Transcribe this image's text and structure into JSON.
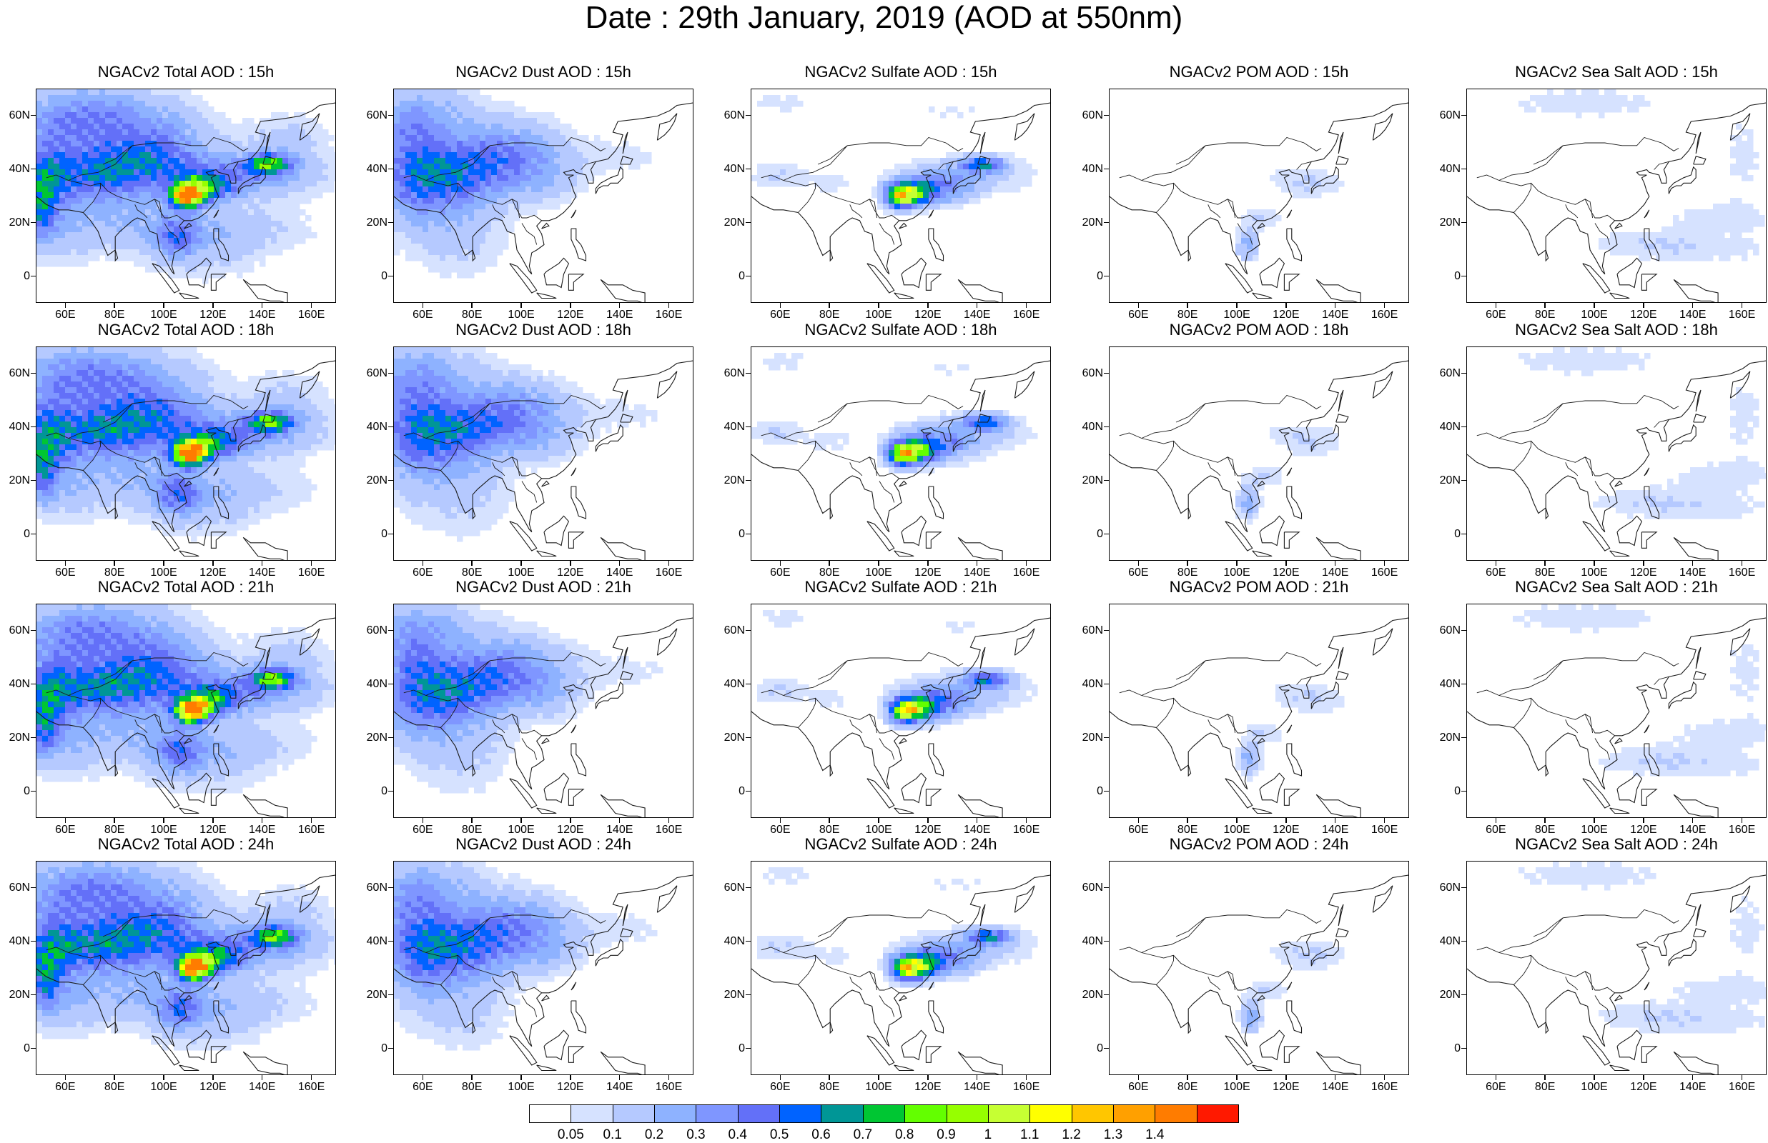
{
  "title": "Date : 29th January, 2019 (AOD at 550nm)",
  "axes": {
    "lat_labels": [
      "60N",
      "40N",
      "20N",
      "0"
    ],
    "lat_values": [
      60,
      40,
      20,
      0
    ],
    "lon_labels": [
      "60E",
      "80E",
      "100E",
      "120E",
      "140E",
      "160E"
    ],
    "lon_values": [
      60,
      80,
      100,
      120,
      140,
      160
    ],
    "lon_range": [
      48,
      170
    ],
    "lat_range": [
      -10,
      70
    ]
  },
  "panels": [
    {
      "title": "NGACv2 Total AOD : 15h"
    },
    {
      "title": "NGACv2 Dust AOD : 15h"
    },
    {
      "title": "NGACv2 Sulfate AOD : 15h"
    },
    {
      "title": "NGACv2 POM AOD : 15h"
    },
    {
      "title": "NGACv2 Sea Salt AOD : 15h"
    },
    {
      "title": "NGACv2 Total AOD : 18h"
    },
    {
      "title": "NGACv2 Dust AOD : 18h"
    },
    {
      "title": "NGACv2 Sulfate AOD : 18h"
    },
    {
      "title": "NGACv2 POM AOD : 18h"
    },
    {
      "title": "NGACv2 Sea Salt AOD : 18h"
    },
    {
      "title": "NGACv2 Total AOD : 21h"
    },
    {
      "title": "NGACv2 Dust AOD : 21h"
    },
    {
      "title": "NGACv2 Sulfate AOD : 21h"
    },
    {
      "title": "NGACv2 POM AOD : 21h"
    },
    {
      "title": "NGACv2 Sea Salt AOD : 21h"
    },
    {
      "title": "NGACv2 Total AOD : 24h"
    },
    {
      "title": "NGACv2 Dust AOD : 24h"
    },
    {
      "title": "NGACv2 Sulfate AOD : 24h"
    },
    {
      "title": "NGACv2 POM AOD : 24h"
    },
    {
      "title": "NGACv2 Sea Salt  AOD : 24h"
    }
  ],
  "colorbar": {
    "labels": [
      "0.05",
      "0.1",
      "0.2",
      "0.3",
      "0.4",
      "0.5",
      "0.6",
      "0.7",
      "0.8",
      "0.9",
      "1",
      "1.1",
      "1.2",
      "1.3",
      "1.4"
    ],
    "colors": [
      "#ffffff",
      "#d6e2ff",
      "#b5c9ff",
      "#8eb2ff",
      "#7f96ff",
      "#6370f8",
      "#0063ff",
      "#009696",
      "#00c633",
      "#63ff00",
      "#96ff00",
      "#c6ff33",
      "#ffff00",
      "#ffc600",
      "#ffa000",
      "#ff7c00",
      "#ff1900"
    ]
  }
}
